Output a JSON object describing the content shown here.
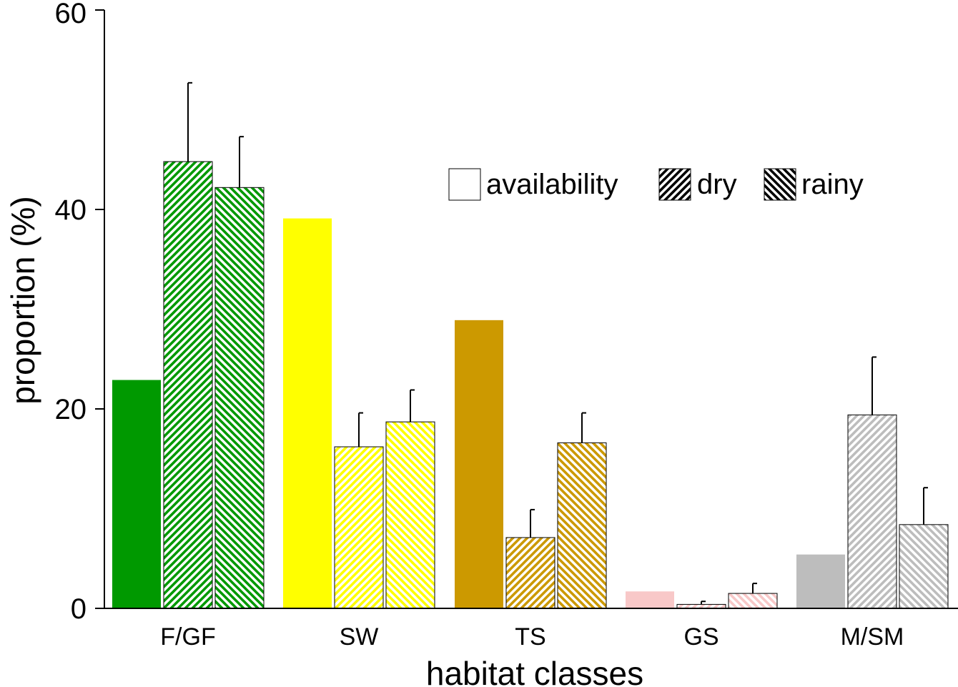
{
  "chart_data": {
    "type": "bar",
    "title": "",
    "xlabel": "habitat classes",
    "ylabel": "proportion (%)",
    "ylim": [
      0,
      60
    ],
    "yticks": [
      0,
      20,
      40,
      60
    ],
    "categories": [
      "F/GF",
      "SW",
      "TS",
      "GS",
      "M/SM"
    ],
    "category_colors": [
      "#009900",
      "#ffff00",
      "#cc9900",
      "#f8c8c8",
      "#bdbdbd"
    ],
    "series": [
      {
        "name": "availability",
        "pattern": "solid",
        "values": [
          22.9,
          39.1,
          28.9,
          1.7,
          5.4
        ],
        "errors": [
          0,
          0,
          0,
          0,
          0
        ]
      },
      {
        "name": "dry",
        "pattern": "diagonal-up",
        "values": [
          44.8,
          16.2,
          7.1,
          0.4,
          19.4
        ],
        "errors": [
          7.9,
          3.4,
          2.8,
          0.3,
          5.8
        ]
      },
      {
        "name": "rainy",
        "pattern": "diagonal-down",
        "values": [
          42.2,
          18.7,
          16.6,
          1.5,
          8.4
        ],
        "errors": [
          5.1,
          3.2,
          3.0,
          1.0,
          3.7
        ]
      }
    ],
    "legend_position": "top-right"
  }
}
